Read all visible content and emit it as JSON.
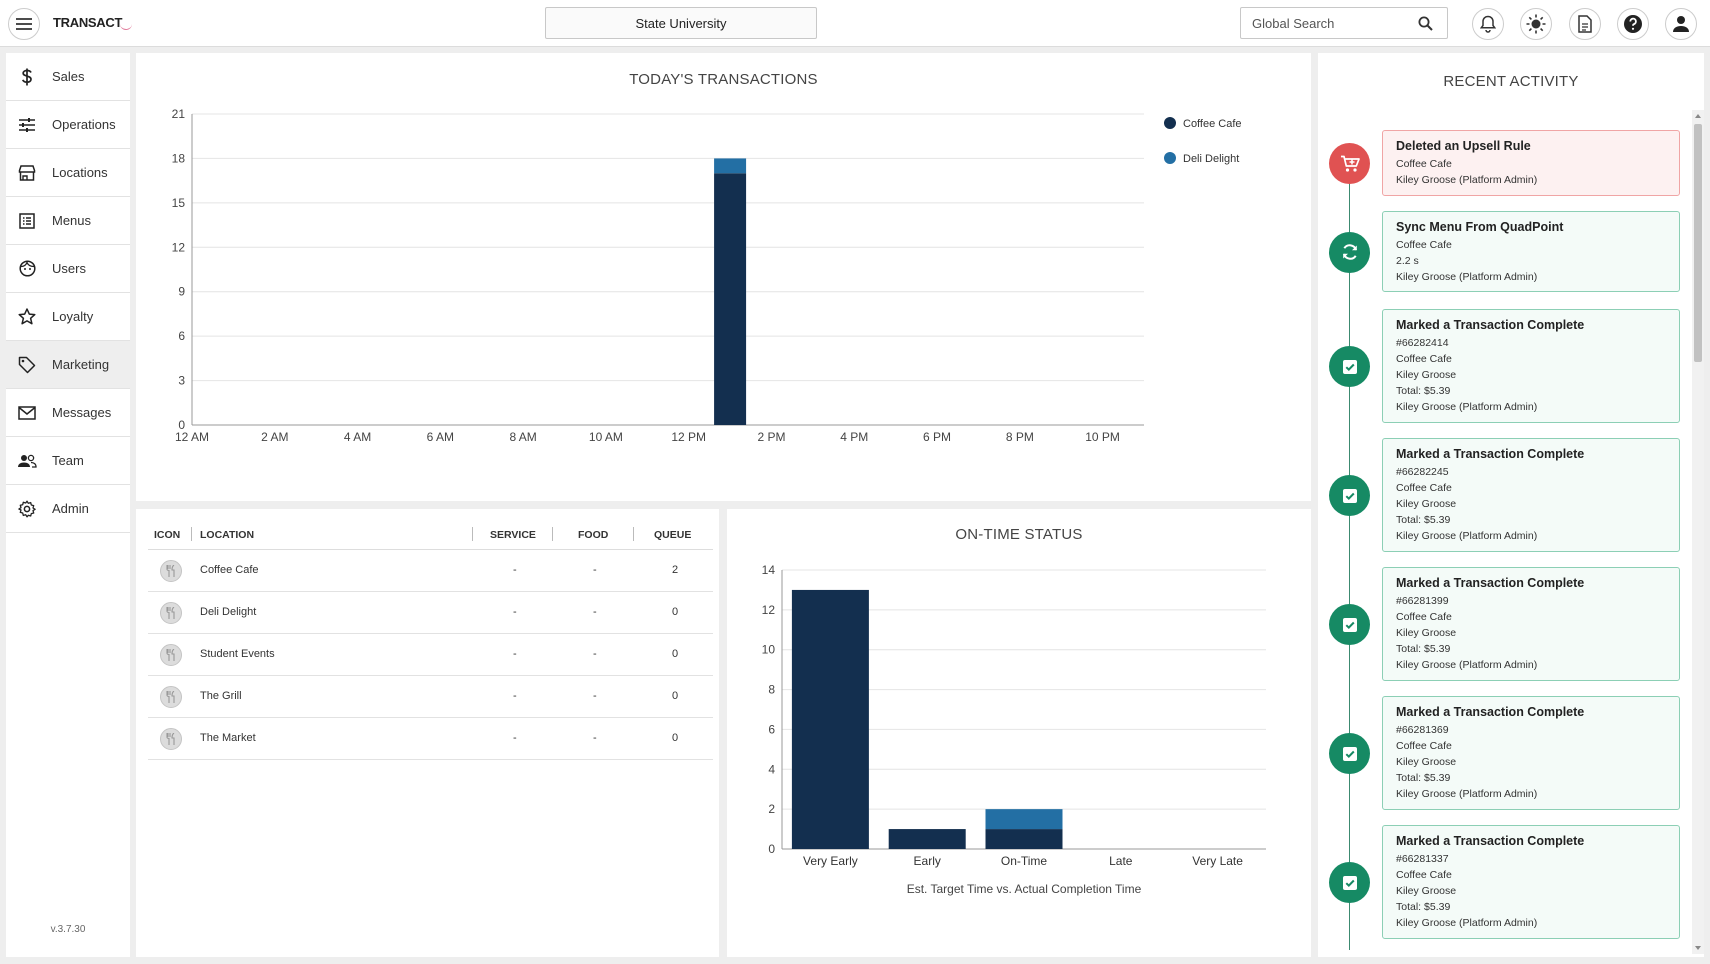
{
  "app": {
    "logo": "TRANSACT",
    "institution": "State University",
    "search_placeholder": "Global Search",
    "version": "v.3.7.30"
  },
  "sidebar": {
    "items": [
      {
        "label": "Sales",
        "icon": "dollar-icon"
      },
      {
        "label": "Operations",
        "icon": "sliders-icon"
      },
      {
        "label": "Locations",
        "icon": "store-icon"
      },
      {
        "label": "Menus",
        "icon": "menu-list-icon"
      },
      {
        "label": "Users",
        "icon": "face-icon"
      },
      {
        "label": "Loyalty",
        "icon": "star-icon"
      },
      {
        "label": "Marketing",
        "icon": "tag-icon"
      },
      {
        "label": "Messages",
        "icon": "mail-icon"
      },
      {
        "label": "Team",
        "icon": "people-icon"
      },
      {
        "label": "Admin",
        "icon": "gear-icon"
      }
    ],
    "active": "Marketing"
  },
  "colors": {
    "dark_navy": "#132f4f",
    "blue": "#236fa4",
    "green": "#168a64",
    "red": "#e05252"
  },
  "transactions_chart": {
    "title": "TODAY'S TRANSACTIONS",
    "y_ticks": [
      "0",
      "3",
      "6",
      "9",
      "12",
      "15",
      "18",
      "21"
    ],
    "x_ticks": [
      "12 AM",
      "2 AM",
      "4 AM",
      "6 AM",
      "8 AM",
      "10 AM",
      "12 PM",
      "2 PM",
      "4 PM",
      "6 PM",
      "8 PM",
      "10 PM"
    ],
    "legend": [
      "Coffee Cafe",
      "Deli Delight"
    ]
  },
  "chart_data": [
    {
      "type": "bar",
      "title": "TODAY'S TRANSACTIONS",
      "stacked": true,
      "xlabel": "",
      "ylabel": "",
      "ylim": [
        0,
        21
      ],
      "x": [
        "1 PM"
      ],
      "series": [
        {
          "name": "Coffee Cafe",
          "color": "#132f4f",
          "values": [
            17
          ]
        },
        {
          "name": "Deli Delight",
          "color": "#236fa4",
          "values": [
            1
          ]
        }
      ],
      "legend": "top-right",
      "grid": true
    },
    {
      "type": "bar",
      "title": "ON-TIME STATUS",
      "stacked": true,
      "categories": [
        "Very Early",
        "Early",
        "On-Time",
        "Late",
        "Very Late"
      ],
      "series": [
        {
          "color": "#132f4f",
          "values": [
            13,
            1,
            1,
            0,
            0
          ]
        },
        {
          "color": "#236fa4",
          "values": [
            0,
            0,
            1,
            0,
            0
          ]
        }
      ],
      "xlabel": "Est. Target Time vs. Actual Completion Time",
      "ylabel": "",
      "ylim": [
        0,
        14
      ],
      "grid": true
    }
  ],
  "ontime_chart": {
    "title": "ON-TIME STATUS",
    "y_ticks": [
      "0",
      "2",
      "4",
      "6",
      "8",
      "10",
      "12",
      "14"
    ],
    "categories": [
      "Very Early",
      "Early",
      "On-Time",
      "Late",
      "Very Late"
    ],
    "xlabel": "Est. Target Time vs. Actual Completion Time"
  },
  "locations_table": {
    "headers": {
      "icon": "ICON",
      "location": "LOCATION",
      "service": "SERVICE",
      "food": "FOOD",
      "queue": "QUEUE"
    },
    "rows": [
      {
        "location": "Coffee Cafe",
        "service": "-",
        "food": "-",
        "queue": "2"
      },
      {
        "location": "Deli Delight",
        "service": "-",
        "food": "-",
        "queue": "0"
      },
      {
        "location": "Student Events",
        "service": "-",
        "food": "-",
        "queue": "0"
      },
      {
        "location": "The Grill",
        "service": "-",
        "food": "-",
        "queue": "0"
      },
      {
        "location": "The Market",
        "service": "-",
        "food": "-",
        "queue": "0"
      }
    ]
  },
  "recent_activity": {
    "title": "RECENT ACTIVITY",
    "items": [
      {
        "title": "Deleted an Upsell Rule",
        "lines": [
          "Coffee Cafe",
          "Kiley Groose (Platform Admin)"
        ],
        "type": "danger",
        "icon": "cart-icon"
      },
      {
        "title": "Sync Menu From QuadPoint",
        "lines": [
          "Coffee Cafe",
          "2.2 s",
          "Kiley Groose (Platform Admin)"
        ],
        "type": "success",
        "icon": "sync-icon"
      },
      {
        "title": "Marked a Transaction Complete",
        "lines": [
          "#66282414",
          "Coffee Cafe",
          "Kiley Groose",
          "Total: $5.39",
          "Kiley Groose (Platform Admin)"
        ],
        "type": "success",
        "icon": "check-icon"
      },
      {
        "title": "Marked a Transaction Complete",
        "lines": [
          "#66282245",
          "Coffee Cafe",
          "Kiley Groose",
          "Total: $5.39",
          "Kiley Groose (Platform Admin)"
        ],
        "type": "success",
        "icon": "check-icon"
      },
      {
        "title": "Marked a Transaction Complete",
        "lines": [
          "#66281399",
          "Coffee Cafe",
          "Kiley Groose",
          "Total: $5.39",
          "Kiley Groose (Platform Admin)"
        ],
        "type": "success",
        "icon": "check-icon"
      },
      {
        "title": "Marked a Transaction Complete",
        "lines": [
          "#66281369",
          "Coffee Cafe",
          "Kiley Groose",
          "Total: $5.39",
          "Kiley Groose (Platform Admin)"
        ],
        "type": "success",
        "icon": "check-icon"
      },
      {
        "title": "Marked a Transaction Complete",
        "lines": [
          "#66281337",
          "Coffee Cafe",
          "Kiley Groose",
          "Total: $5.39",
          "Kiley Groose (Platform Admin)"
        ],
        "type": "success",
        "icon": "check-icon"
      }
    ]
  }
}
